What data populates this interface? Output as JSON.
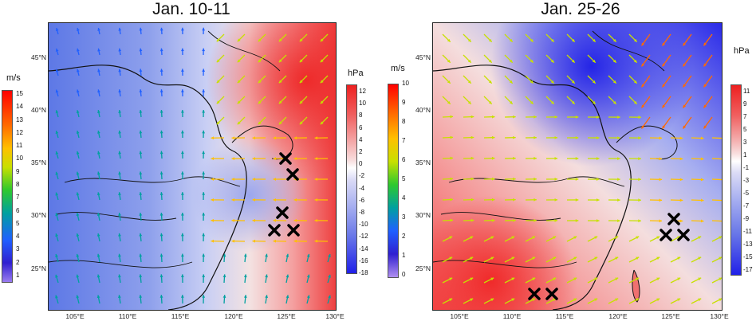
{
  "panels": [
    {
      "title": "Jan. 10-11",
      "lat_labels": [
        "45°N",
        "40°N",
        "35°N",
        "30°N",
        "25°N"
      ],
      "lon_labels": [
        "105°E",
        "110°E",
        "115°E",
        "120°E",
        "125°E",
        "130°E"
      ],
      "wind_colorbar": {
        "unit": "m/s",
        "labels": [
          "15",
          "14",
          "13",
          "12",
          "11",
          "10",
          "9",
          "8",
          "7",
          "6",
          "5",
          "4",
          "3",
          "2",
          "1"
        ]
      },
      "pressure_colorbar": {
        "unit": "hPa",
        "labels": [
          "12",
          "10",
          "8",
          "6",
          "4",
          "2",
          "0",
          "-2",
          "-4",
          "-6",
          "-8",
          "-10",
          "-12",
          "-14",
          "-16",
          "-18"
        ]
      },
      "markers": 5
    },
    {
      "title": "Jan. 25-26",
      "lat_labels": [
        "45°N",
        "40°N",
        "35°N",
        "30°N",
        "25°N"
      ],
      "lon_labels": [
        "105°E",
        "110°E",
        "115°E",
        "120°E",
        "125°E",
        "130°E"
      ],
      "wind_colorbar": {
        "unit": "m/s",
        "labels": [
          "10",
          "9",
          "8",
          "7",
          "6",
          "5",
          "4",
          "3",
          "2",
          "1",
          "0"
        ]
      },
      "pressure_colorbar": {
        "unit": "hPa",
        "labels": [
          "11",
          "9",
          "7",
          "5",
          "3",
          "1",
          "-1",
          "-3",
          "-5",
          "-7",
          "-9",
          "-11",
          "-13",
          "-15",
          "-17"
        ]
      },
      "markers": 5
    }
  ],
  "colors": {
    "pressure_high": "#e8202a",
    "pressure_low": "#2a2ae8",
    "marker": "#000000",
    "coastline": "#111111"
  }
}
